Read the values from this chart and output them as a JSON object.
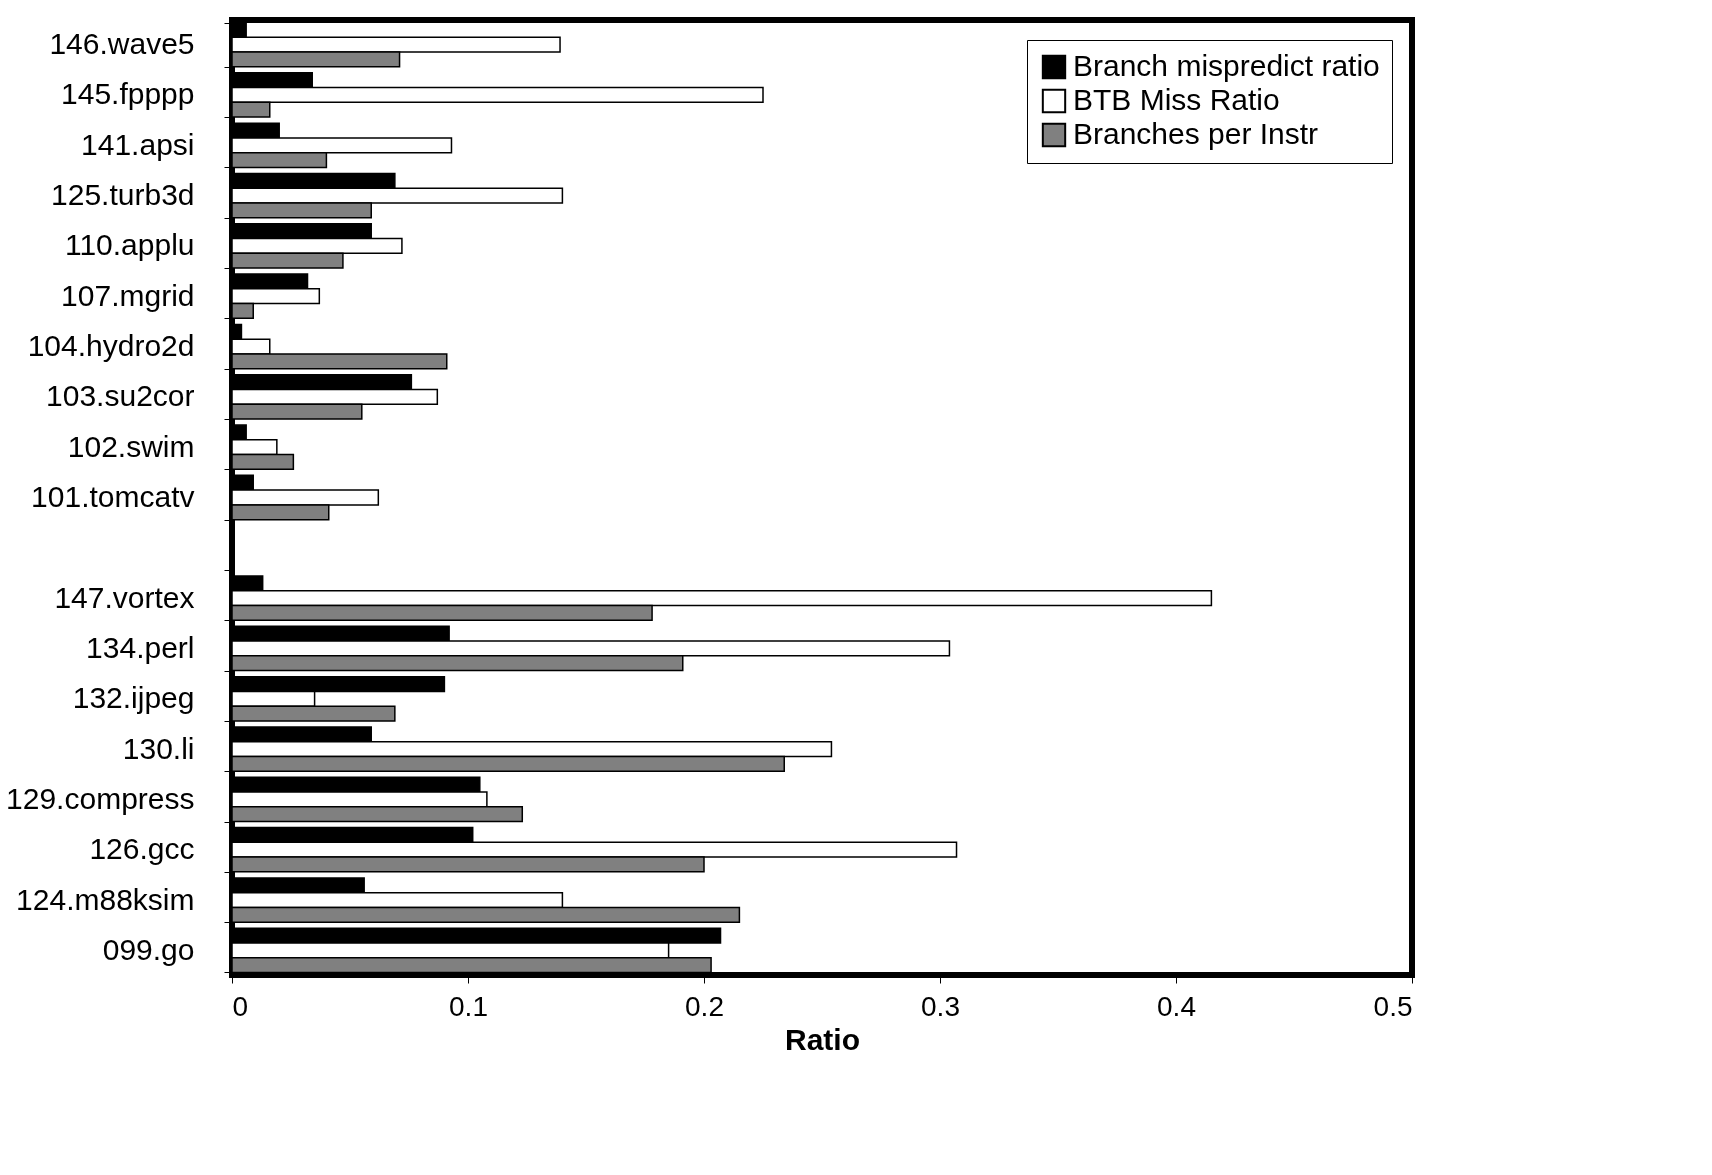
{
  "chart_data": {
    "type": "bar",
    "orientation": "horizontal",
    "xlabel": "Ratio",
    "categories": [
      "146.wave5",
      "145.fpppp",
      "141.apsi",
      "125.turb3d",
      "110.applu",
      "107.mgrid",
      "104.hydro2d",
      "103.su2cor",
      "102.swim",
      "101.tomcatv",
      null,
      "147.vortex",
      "134.perl",
      "132.ijpeg",
      "130.li",
      "129.compress",
      "126.gcc",
      "124.m88ksim",
      "099.go"
    ],
    "series": [
      {
        "name": "Branch mispredict ratio",
        "color": "#000000",
        "values": [
          0.006,
          0.034,
          0.02,
          0.069,
          0.059,
          0.032,
          0.004,
          0.076,
          0.006,
          0.009,
          null,
          0.013,
          0.092,
          0.09,
          0.059,
          0.105,
          0.102,
          0.056,
          0.207
        ]
      },
      {
        "name": "BTB Miss Ratio",
        "color": "#ffffff",
        "values": [
          0.139,
          0.225,
          0.093,
          0.14,
          0.072,
          0.037,
          0.016,
          0.087,
          0.019,
          0.062,
          null,
          0.415,
          0.304,
          0.035,
          0.254,
          0.108,
          0.307,
          0.14,
          0.185
        ]
      },
      {
        "name": "Branches per Instr",
        "color": "#808080",
        "values": [
          0.071,
          0.016,
          0.04,
          0.059,
          0.047,
          0.009,
          0.091,
          0.055,
          0.026,
          0.041,
          null,
          0.178,
          0.191,
          0.069,
          0.234,
          0.123,
          0.2,
          0.215,
          0.203
        ]
      }
    ],
    "xlim": [
      0,
      0.5
    ],
    "xticks": [
      0,
      0.1,
      0.2,
      0.3,
      0.4,
      0.5
    ],
    "grid": false,
    "legend": "top right"
  }
}
